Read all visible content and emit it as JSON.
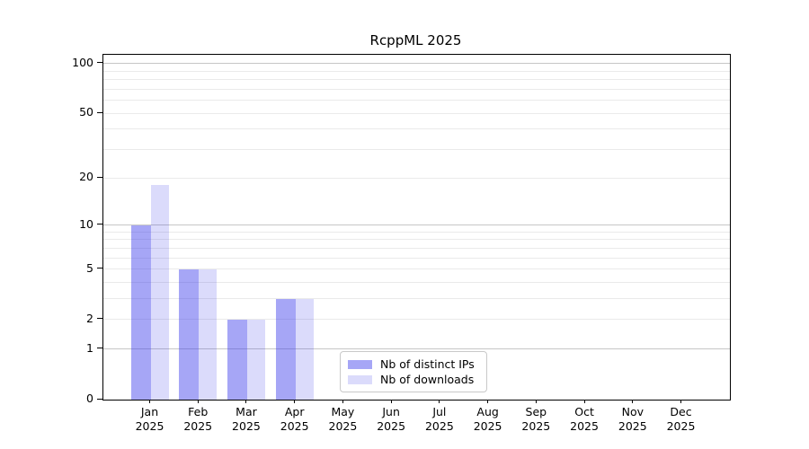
{
  "chart_data": {
    "type": "bar",
    "title": "RcppML 2025",
    "categories": [
      "Jan 2025",
      "Feb 2025",
      "Mar 2025",
      "Apr 2025",
      "May 2025",
      "Jun 2025",
      "Jul 2025",
      "Aug 2025",
      "Sep 2025",
      "Oct 2025",
      "Nov 2025",
      "Dec 2025"
    ],
    "x_tick_month_labels": [
      "Jan",
      "Feb",
      "Mar",
      "Apr",
      "May",
      "Jun",
      "Jul",
      "Aug",
      "Sep",
      "Oct",
      "Nov",
      "Dec"
    ],
    "x_tick_year_label": "2025",
    "series": [
      {
        "name": "Nb of distinct IPs",
        "color": "rgba(57,57,235,0.45)",
        "values": [
          10,
          5,
          2,
          3,
          0,
          0,
          0,
          0,
          0,
          0,
          0,
          0
        ]
      },
      {
        "name": "Nb of downloads",
        "color": "rgba(57,57,235,0.18)",
        "values": [
          18,
          5,
          2,
          3,
          0,
          0,
          0,
          0,
          0,
          0,
          0,
          0
        ]
      }
    ],
    "xlabel": "",
    "ylabel": "",
    "yscale": "log1p",
    "ylim": [
      0,
      113
    ],
    "yticks": [
      0,
      1,
      2,
      5,
      10,
      20,
      50,
      100
    ],
    "ytick_labels": [
      "0",
      "1",
      "2",
      "5",
      "10",
      "20",
      "50",
      "100"
    ],
    "minor_gridline_values": [
      3,
      4,
      6,
      7,
      8,
      9,
      30,
      40,
      60,
      70,
      80,
      90
    ],
    "emphasized_gridline_values": [
      1,
      10,
      100
    ],
    "grid": "horizontal",
    "legend": {
      "position": "lower center-left",
      "entries": [
        "Nb of distinct IPs",
        "Nb of downloads"
      ]
    },
    "colors": {
      "grid_minor": "#eaeaea",
      "grid_major": "#c6c6c6",
      "spine": "#000000",
      "text": "#000000",
      "background": "#ffffff"
    }
  }
}
